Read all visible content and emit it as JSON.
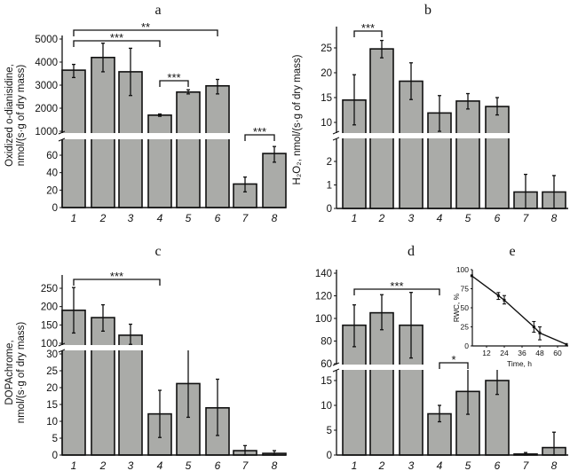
{
  "chart_data": [
    {
      "id": "a",
      "type": "bar",
      "title": "a",
      "ylabel": [
        "Oxidized o-dianisidine,",
        "nmol/(s·g of dry mass)"
      ],
      "categories": [
        "1",
        "2",
        "3",
        "4",
        "5",
        "6",
        "7",
        "8"
      ],
      "broken_axis": true,
      "segments": [
        {
          "range": [
            1000,
            5000
          ],
          "ticks": [
            1000,
            2000,
            3000,
            4000,
            5000
          ]
        },
        {
          "range": [
            0,
            60
          ],
          "ticks": [
            0,
            20,
            40,
            60
          ]
        }
      ],
      "values": [
        3650,
        4200,
        3580,
        1700,
        2700,
        2970,
        27,
        62
      ],
      "errors": [
        [
          3330,
          3900
        ],
        [
          3580,
          4820
        ],
        [
          2550,
          4600
        ],
        [
          1650,
          1750
        ],
        [
          2620,
          2800
        ],
        [
          2620,
          3250
        ],
        [
          18,
          35
        ],
        [
          52,
          70
        ]
      ],
      "significance": [
        {
          "from": 1,
          "to": 6,
          "label": "**"
        },
        {
          "from": 1,
          "to": 4,
          "label": "***"
        },
        {
          "from": 4,
          "to": 5,
          "label": "***"
        },
        {
          "from": 7,
          "to": 8,
          "label": "***"
        }
      ],
      "bar_color": "#aaaba8"
    },
    {
      "id": "b",
      "type": "bar",
      "title": "b",
      "ylabel": [
        "H₂O₂, nmol/(s·g of dry mass)"
      ],
      "categories": [
        "1",
        "2",
        "3",
        "4",
        "5",
        "6",
        "7",
        "8"
      ],
      "broken_axis": true,
      "segments": [
        {
          "range": [
            10,
            25
          ],
          "ticks": [
            10,
            15,
            20,
            25
          ]
        },
        {
          "range": [
            0,
            2
          ],
          "ticks": [
            0,
            1,
            2
          ]
        }
      ],
      "values": [
        14.5,
        24.8,
        18.3,
        11.9,
        14.3,
        13.2,
        0.7,
        0.7
      ],
      "errors": [
        [
          9.5,
          19.6
        ],
        [
          23,
          26.5
        ],
        [
          14.6,
          22
        ],
        [
          8.2,
          15.4
        ],
        [
          12.7,
          15.8
        ],
        [
          11.5,
          15
        ],
        [
          0,
          1.45
        ],
        [
          0,
          1.4
        ]
      ],
      "significance": [
        {
          "from": 1,
          "to": 2,
          "label": "***"
        }
      ],
      "bar_color": "#aaaba8"
    },
    {
      "id": "c",
      "type": "bar",
      "title": "c",
      "ylabel": [
        "DOPAchrome,",
        "nmol/(s·g of dry mass)"
      ],
      "categories": [
        "1",
        "2",
        "3",
        "4",
        "5",
        "6",
        "7",
        "8"
      ],
      "broken_axis": true,
      "segments": [
        {
          "range": [
            100,
            250
          ],
          "ticks": [
            100,
            150,
            200,
            250
          ]
        },
        {
          "range": [
            0,
            30
          ],
          "ticks": [
            0,
            5,
            10,
            15,
            20,
            25,
            30
          ]
        }
      ],
      "values": [
        190,
        170,
        122,
        12.2,
        21.2,
        14,
        1.3,
        0.5
      ],
      "errors": [
        [
          128,
          252
        ],
        [
          133,
          205
        ],
        [
          97,
          152
        ],
        [
          5.2,
          19.2
        ],
        [
          11.2,
          31.5
        ],
        [
          5.8,
          22.5
        ],
        [
          0,
          2.8
        ],
        [
          0,
          1.3
        ]
      ],
      "significance": [
        {
          "from": 1,
          "to": 4,
          "label": "***"
        }
      ],
      "bar_color": "#aaaba8"
    },
    {
      "id": "d",
      "type": "bar",
      "title": "d",
      "ylabel": [],
      "categories": [
        "1",
        "2",
        "3",
        "4",
        "5",
        "6",
        "7",
        "8"
      ],
      "broken_axis": true,
      "segments": [
        {
          "range": [
            60,
            140
          ],
          "ticks": [
            60,
            80,
            100,
            120,
            140
          ]
        },
        {
          "range": [
            0,
            15
          ],
          "ticks": [
            0,
            5,
            10,
            15
          ]
        }
      ],
      "values": [
        94,
        105,
        94,
        8.3,
        12.8,
        15,
        0.2,
        1.5
      ],
      "errors": [
        [
          75,
          112
        ],
        [
          90,
          121
        ],
        [
          65,
          123
        ],
        [
          6.7,
          10
        ],
        [
          8.2,
          17.3
        ],
        [
          12.2,
          18
        ],
        [
          0,
          0.5
        ],
        [
          0,
          4.6
        ]
      ],
      "significance": [
        {
          "from": 1,
          "to": 4,
          "label": "***"
        },
        {
          "from": 4,
          "to": 5,
          "label": "*"
        }
      ],
      "bar_color": "#aaaba8"
    },
    {
      "id": "e",
      "type": "line",
      "title": "e",
      "xlabel": "Time, h",
      "ylabel": "RWC, %",
      "xlim": [
        0,
        66
      ],
      "ylim": [
        0,
        100
      ],
      "xticks": [
        12,
        24,
        36,
        48,
        60
      ],
      "yticks": [
        0,
        25,
        50,
        75,
        100
      ],
      "x": [
        2,
        20,
        24,
        44,
        48,
        66
      ],
      "y": [
        92,
        66,
        60,
        25,
        17,
        2
      ],
      "errors": [
        null,
        [
          61,
          70
        ],
        [
          55,
          66
        ],
        [
          18,
          32
        ],
        [
          8,
          25
        ],
        null
      ]
    }
  ]
}
